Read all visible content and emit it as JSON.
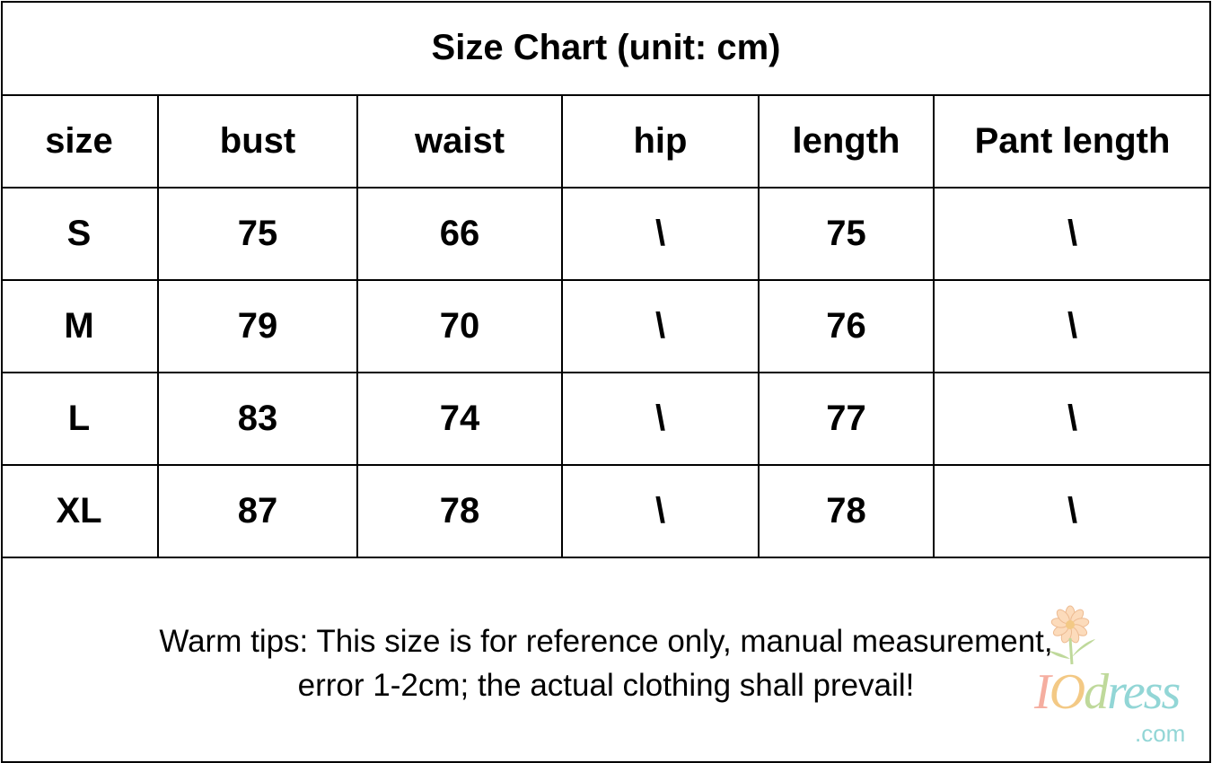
{
  "title": "Size Chart (unit: cm)",
  "table": {
    "headers": [
      "size",
      "bust",
      "waist",
      "hip",
      "length",
      "Pant length"
    ],
    "rows": [
      [
        "S",
        "75",
        "66",
        "\\",
        "75",
        "\\"
      ],
      [
        "M",
        "79",
        "70",
        "\\",
        "76",
        "\\"
      ],
      [
        "L",
        "83",
        "74",
        "\\",
        "77",
        "\\"
      ],
      [
        "XL",
        "87",
        "78",
        "\\",
        "78",
        "\\"
      ]
    ]
  },
  "tips": {
    "line1": "Warm tips: This size is for reference only, manual measurement,",
    "line2": "error 1-2cm; the actual clothing shall prevail!"
  },
  "watermark": {
    "brand": "IOdress",
    "domain": ".com",
    "colors": {
      "I": "#f4a090",
      "O": "#f2c070",
      "d": "#b5d38a",
      "ress": "#7fcfcf"
    }
  }
}
